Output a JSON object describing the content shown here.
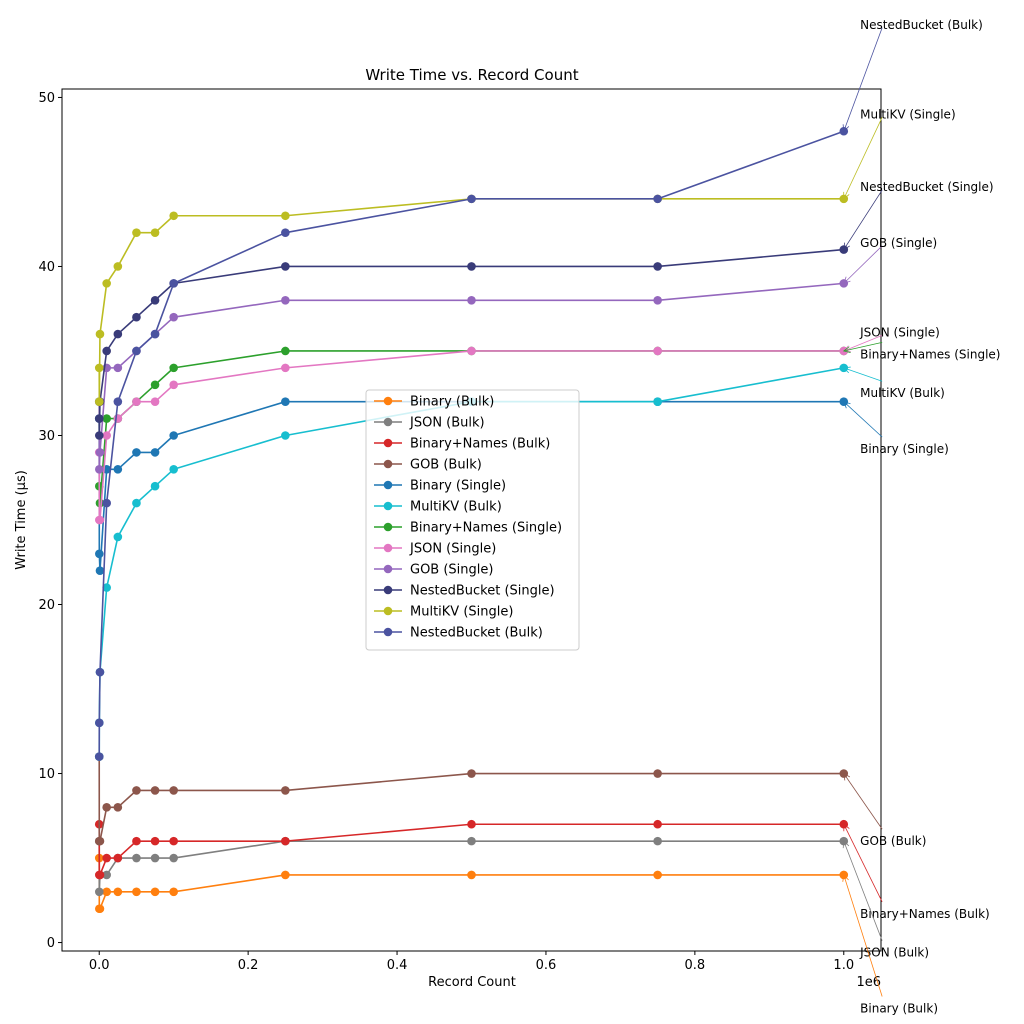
{
  "chart_data": {
    "type": "line",
    "title": "Write Time vs. Record Count",
    "xlabel": "Record Count",
    "ylabel": "Write Time (µs)",
    "x_offset_label": "1e6",
    "xlim": [
      -50000,
      1050000
    ],
    "ylim": [
      -0.5,
      50.5
    ],
    "x_ticks": [
      0,
      200000,
      400000,
      600000,
      800000,
      1000000
    ],
    "x_tick_labels": [
      "0.0",
      "0.2",
      "0.4",
      "0.6",
      "0.8",
      "1.0"
    ],
    "y_ticks": [
      0,
      10,
      20,
      30,
      40,
      50
    ],
    "y_tick_labels": [
      "0",
      "10",
      "20",
      "30",
      "40",
      "50"
    ],
    "grid": false,
    "legend_position": "center",
    "x": [
      10,
      100,
      1000,
      10000,
      25000,
      50000,
      75000,
      100000,
      250000,
      500000,
      750000,
      1000000
    ],
    "series": [
      {
        "name": "Binary (Bulk)",
        "color": "#ff7f0e",
        "values": [
          5,
          2,
          2,
          3,
          3,
          3,
          3,
          3,
          4,
          4,
          4,
          4
        ]
      },
      {
        "name": "JSON (Bulk)",
        "color": "#7f7f7f",
        "values": [
          6,
          3,
          4,
          4,
          5,
          5,
          5,
          5,
          6,
          6,
          6,
          6
        ]
      },
      {
        "name": "Binary+Names (Bulk)",
        "color": "#d62728",
        "values": [
          7,
          4,
          4,
          5,
          5,
          6,
          6,
          6,
          6,
          7,
          7,
          7
        ]
      },
      {
        "name": "GOB (Bulk)",
        "color": "#8c564b",
        "values": [
          11,
          6,
          6,
          8,
          8,
          9,
          9,
          9,
          9,
          10,
          10,
          10
        ]
      },
      {
        "name": "Binary (Single)",
        "color": "#1f77b4",
        "values": [
          31,
          23,
          22,
          28,
          28,
          29,
          29,
          30,
          32,
          32,
          32,
          32
        ]
      },
      {
        "name": "MultiKV (Bulk)",
        "color": "#17becf",
        "values": [
          11,
          13,
          16,
          21,
          24,
          26,
          27,
          28,
          30,
          32,
          32,
          34
        ]
      },
      {
        "name": "Binary+Names (Single)",
        "color": "#2ca02c",
        "values": [
          32,
          27,
          26,
          31,
          31,
          32,
          33,
          34,
          35,
          35,
          35,
          35
        ]
      },
      {
        "name": "JSON (Single)",
        "color": "#e377c2",
        "values": [
          29,
          25,
          25,
          30,
          31,
          32,
          32,
          33,
          34,
          35,
          35,
          35
        ]
      },
      {
        "name": "GOB (Single)",
        "color": "#9467bd",
        "values": [
          32,
          28,
          29,
          34,
          34,
          35,
          36,
          37,
          38,
          38,
          38,
          39
        ]
      },
      {
        "name": "NestedBucket (Single)",
        "color": "#393b79",
        "values": [
          31,
          30,
          32,
          35,
          36,
          37,
          38,
          39,
          40,
          40,
          40,
          41
        ]
      },
      {
        "name": "MultiKV (Single)",
        "color": "#bcbd22",
        "values": [
          34,
          32,
          36,
          39,
          40,
          42,
          42,
          43,
          43,
          44,
          44,
          44
        ]
      },
      {
        "name": "NestedBucket (Bulk)",
        "color": "#4b53a0",
        "values": [
          11,
          13,
          16,
          26,
          32,
          35,
          36,
          39,
          42,
          44,
          44,
          48
        ]
      }
    ],
    "annotations": [
      {
        "text": "NestedBucket (Bulk)",
        "series": "NestedBucket (Bulk)",
        "text_x": 1022000,
        "text_y": 54.3
      },
      {
        "text": "MultiKV (Single)",
        "series": "MultiKV (Single)",
        "text_x": 1022000,
        "text_y": 49.0
      },
      {
        "text": "NestedBucket (Single)",
        "series": "NestedBucket (Single)",
        "text_x": 1022000,
        "text_y": 44.7
      },
      {
        "text": "GOB (Single)",
        "series": "GOB (Single)",
        "text_x": 1022000,
        "text_y": 41.4
      },
      {
        "text": "JSON (Single)",
        "series": "JSON (Single)",
        "text_x": 1022000,
        "text_y": 36.1
      },
      {
        "text": "Binary+Names (Single)",
        "series": "Binary+Names (Single)",
        "text_x": 1022000,
        "text_y": 34.8
      },
      {
        "text": "MultiKV (Bulk)",
        "series": "MultiKV (Bulk)",
        "text_x": 1022000,
        "text_y": 32.5
      },
      {
        "text": "Binary (Single)",
        "series": "Binary (Single)",
        "text_x": 1022000,
        "text_y": 29.2
      },
      {
        "text": "GOB (Bulk)",
        "series": "GOB (Bulk)",
        "text_x": 1022000,
        "text_y": 6.0
      },
      {
        "text": "Binary+Names (Bulk)",
        "series": "Binary+Names (Bulk)",
        "text_x": 1022000,
        "text_y": 1.7
      },
      {
        "text": "JSON (Bulk)",
        "series": "JSON (Bulk)",
        "text_x": 1022000,
        "text_y": -0.6
      },
      {
        "text": "Binary (Bulk)",
        "series": "Binary (Bulk)",
        "text_x": 1022000,
        "text_y": -3.9
      }
    ]
  }
}
